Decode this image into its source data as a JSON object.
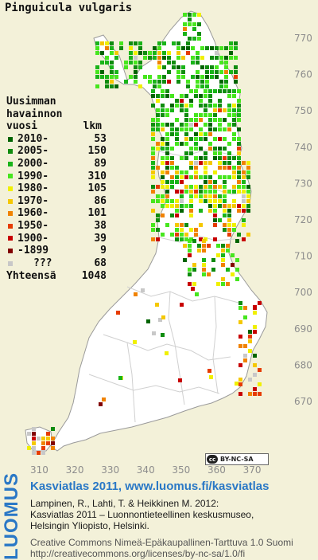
{
  "title": "Pinguicula vulgaris",
  "legend": {
    "heading_line1": "Uusimman",
    "heading_line2": "havainnon",
    "heading_col1": "vuosi",
    "heading_col2": "lkm",
    "items": [
      {
        "label": "2010-",
        "count": "53",
        "color": "#006400"
      },
      {
        "label": "2005-",
        "count": "150",
        "color": "#0f8c0f"
      },
      {
        "label": "2000-",
        "count": "89",
        "color": "#19b419"
      },
      {
        "label": "1990-",
        "count": "310",
        "color": "#46e61e"
      },
      {
        "label": "1980-",
        "count": "105",
        "color": "#f0f000"
      },
      {
        "label": "1970-",
        "count": "86",
        "color": "#f5c800"
      },
      {
        "label": "1960-",
        "count": "101",
        "color": "#f08200"
      },
      {
        "label": "1950-",
        "count": "38",
        "color": "#e63c00"
      },
      {
        "label": "1900-",
        "count": "39",
        "color": "#c80000"
      },
      {
        "label": "-1899",
        "count": "9",
        "color": "#820000"
      },
      {
        "label": "???",
        "count": "68",
        "color": "#c8c8c8"
      }
    ],
    "total_label": "Yhteensä",
    "total_count": "1048"
  },
  "axes": {
    "y_ticks": [
      "770",
      "760",
      "750",
      "740",
      "730",
      "720",
      "710",
      "700",
      "690",
      "680",
      "670"
    ],
    "x_ticks": [
      "310",
      "320",
      "330",
      "340",
      "350",
      "360",
      "370"
    ]
  },
  "cc_badge": {
    "symbol": "cc",
    "text": "BY-NC-SA"
  },
  "logo_text": "LUOMUS",
  "credits": {
    "link": "Kasviatlas 2011, www.luomus.fi/kasviatlas",
    "ref_line1": "Lampinen, R., Lahti, T. & Heikkinen M. 2012:",
    "ref_line2": "Kasviatlas 2011 – Luonnontieteellinen keskusmuseo,",
    "ref_line3": "Helsingin Yliopisto, Helsinki.",
    "license_line1": "Creative Commons Nimeä-Epäkaupallinen-Tarttuva 1.0 Suomi",
    "license_line2": "http://creativecommons.org/licenses/by-nc-sa/1.0/fi"
  },
  "colors": {
    "background": "#f3f1d9",
    "land": "#ffffff",
    "border": "#c9c9c9",
    "accent": "#2a78c6"
  }
}
